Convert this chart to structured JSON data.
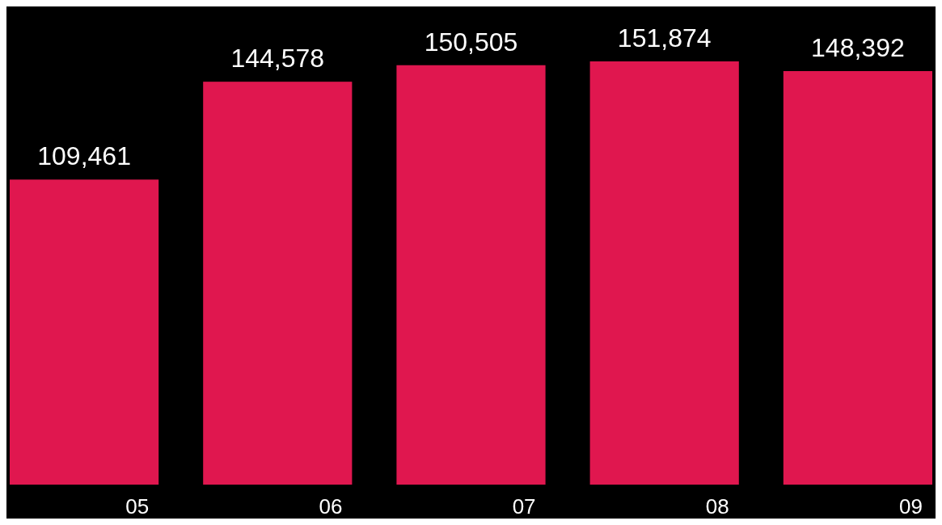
{
  "chart_data": {
    "type": "bar",
    "categories": [
      "05",
      "06",
      "07",
      "08",
      "09"
    ],
    "values": [
      109461,
      144578,
      150505,
      151874,
      148392
    ],
    "color": "#e0174f",
    "value_labels": [
      "109,461",
      "144,578",
      "150,505",
      "151,874",
      "148,392"
    ]
  }
}
